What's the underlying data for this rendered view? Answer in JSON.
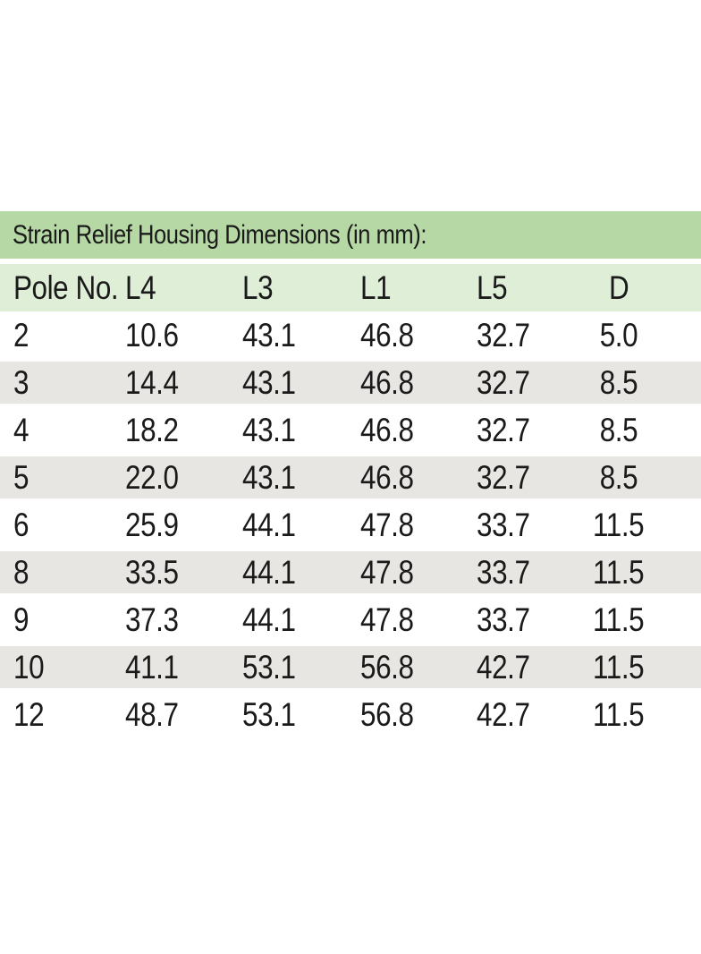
{
  "title": "Strain Relief Housing Dimensions (in mm):",
  "table": {
    "columns": [
      "Pole No.",
      "L4",
      "L3",
      "L1",
      "L5",
      "D"
    ],
    "rows": [
      [
        "2",
        "10.6",
        "43.1",
        "46.8",
        "32.7",
        "5.0"
      ],
      [
        "3",
        "14.4",
        "43.1",
        "46.8",
        "32.7",
        "8.5"
      ],
      [
        "4",
        "18.2",
        "43.1",
        "46.8",
        "32.7",
        "8.5"
      ],
      [
        "5",
        "22.0",
        "43.1",
        "46.8",
        "32.7",
        "8.5"
      ],
      [
        "6",
        "25.9",
        "44.1",
        "47.8",
        "33.7",
        "11.5"
      ],
      [
        "8",
        "33.5",
        "44.1",
        "47.8",
        "33.7",
        "11.5"
      ],
      [
        "9",
        "37.3",
        "44.1",
        "47.8",
        "33.7",
        "11.5"
      ],
      [
        "10",
        "41.1",
        "53.1",
        "56.8",
        "42.7",
        "11.5"
      ],
      [
        "12",
        "48.7",
        "53.1",
        "56.8",
        "42.7",
        "11.5"
      ]
    ]
  },
  "colors": {
    "title_bar_green": "#b5d8a5",
    "header_row_green": "#dfeed7",
    "alt_row_gray": "#e8e6e3",
    "text": "#1a1a1a",
    "background": "#ffffff"
  }
}
